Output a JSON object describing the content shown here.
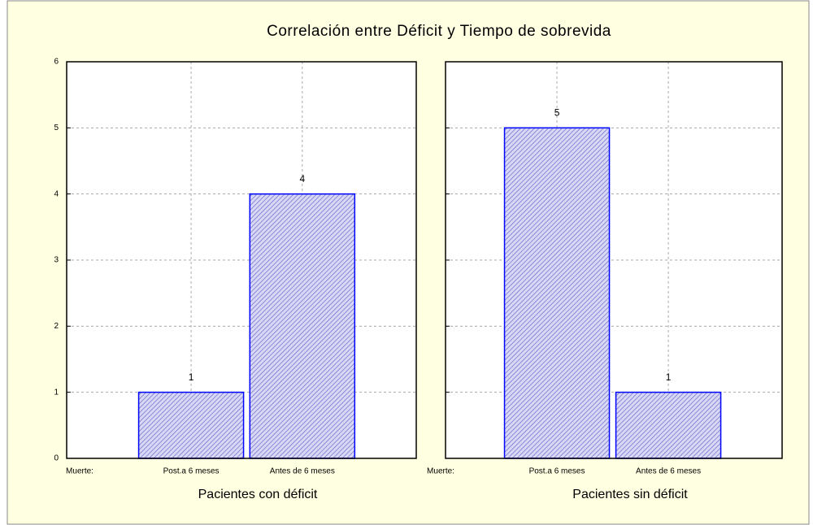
{
  "title": "Correlación entre Déficit y Tiempo de sobrevida",
  "chart_data": [
    {
      "type": "bar",
      "category_axis_label": "Muerte:",
      "categories": [
        "Post.a 6 meses",
        "Antes de 6 meses"
      ],
      "values": [
        1,
        4
      ],
      "xlabel": "Pacientes con déficit",
      "color": "#0000ff",
      "ylim": [
        0,
        6
      ],
      "yticks": [
        0,
        1,
        2,
        3,
        4,
        5,
        6
      ],
      "grid": true
    },
    {
      "type": "bar",
      "category_axis_label": "Muerte:",
      "categories": [
        "Post.a 6 meses",
        "Antes de 6 meses"
      ],
      "values": [
        5,
        1
      ],
      "xlabel": "Pacientes sin déficit",
      "color": "#0000ff",
      "ylim": [
        0,
        6
      ],
      "yticks": [
        0,
        1,
        2,
        3,
        4,
        5,
        6
      ],
      "grid": true
    }
  ]
}
